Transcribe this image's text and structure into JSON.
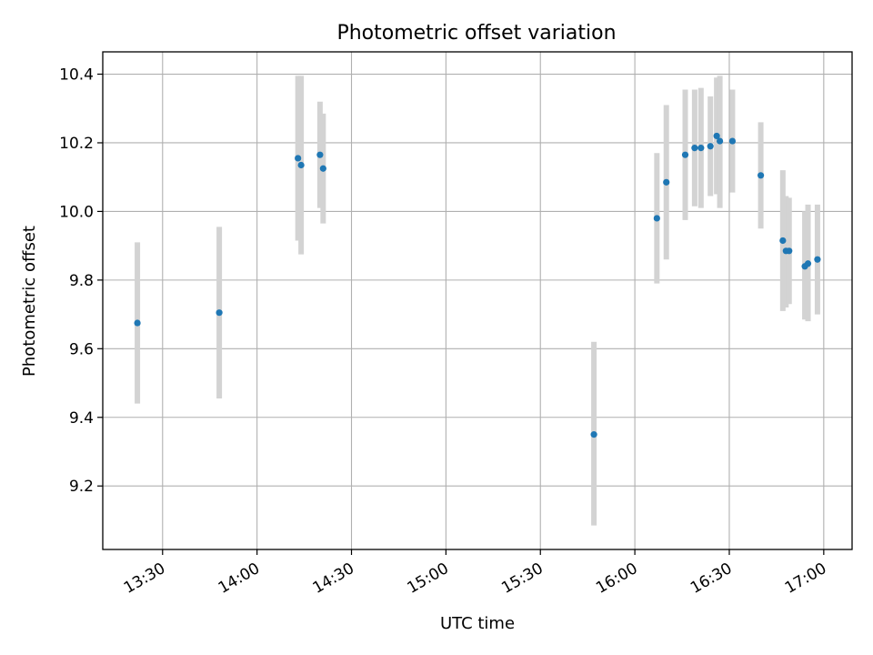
{
  "chart_data": {
    "type": "scatter",
    "title": "Photometric offset variation",
    "xlabel": "UTC time",
    "ylabel": "Photometric offset",
    "x_is_time": true,
    "xlim": [
      "13:11",
      "17:09"
    ],
    "ylim": [
      9.015,
      10.465
    ],
    "x_ticks": [
      "13:30",
      "14:00",
      "14:30",
      "15:00",
      "15:30",
      "16:00",
      "16:30",
      "17:00"
    ],
    "y_ticks": [
      9.2,
      9.4,
      9.6,
      9.8,
      10.0,
      10.2,
      10.4
    ],
    "grid": true,
    "colors": {
      "point": "#1f77b4",
      "error_bar": "#d3d3d3"
    },
    "points": [
      {
        "x": "13:22",
        "y": 9.675,
        "ylo": 9.44,
        "yhi": 9.91
      },
      {
        "x": "13:48",
        "y": 9.705,
        "ylo": 9.455,
        "yhi": 9.955
      },
      {
        "x": "14:13",
        "y": 10.155,
        "ylo": 9.915,
        "yhi": 10.395
      },
      {
        "x": "14:14",
        "y": 10.135,
        "ylo": 9.875,
        "yhi": 10.395
      },
      {
        "x": "14:20",
        "y": 10.165,
        "ylo": 10.01,
        "yhi": 10.32
      },
      {
        "x": "14:21",
        "y": 10.125,
        "ylo": 9.965,
        "yhi": 10.285
      },
      {
        "x": "15:47",
        "y": 9.35,
        "ylo": 9.085,
        "yhi": 9.62
      },
      {
        "x": "16:07",
        "y": 9.98,
        "ylo": 9.79,
        "yhi": 10.17
      },
      {
        "x": "16:10",
        "y": 10.085,
        "ylo": 9.86,
        "yhi": 10.31
      },
      {
        "x": "16:16",
        "y": 10.165,
        "ylo": 9.975,
        "yhi": 10.355
      },
      {
        "x": "16:19",
        "y": 10.185,
        "ylo": 10.015,
        "yhi": 10.355
      },
      {
        "x": "16:21",
        "y": 10.185,
        "ylo": 10.01,
        "yhi": 10.36
      },
      {
        "x": "16:24",
        "y": 10.19,
        "ylo": 10.045,
        "yhi": 10.335
      },
      {
        "x": "16:26",
        "y": 10.22,
        "ylo": 10.05,
        "yhi": 10.39
      },
      {
        "x": "16:27",
        "y": 10.205,
        "ylo": 10.01,
        "yhi": 10.395
      },
      {
        "x": "16:31",
        "y": 10.205,
        "ylo": 10.055,
        "yhi": 10.355
      },
      {
        "x": "16:40",
        "y": 10.105,
        "ylo": 9.95,
        "yhi": 10.26
      },
      {
        "x": "16:47",
        "y": 9.915,
        "ylo": 9.71,
        "yhi": 10.12
      },
      {
        "x": "16:48",
        "y": 9.885,
        "ylo": 9.72,
        "yhi": 10.045
      },
      {
        "x": "16:49",
        "y": 9.885,
        "ylo": 9.73,
        "yhi": 10.04
      },
      {
        "x": "16:54",
        "y": 9.84,
        "ylo": 9.685,
        "yhi": 10.0
      },
      {
        "x": "16:55",
        "y": 9.848,
        "ylo": 9.68,
        "yhi": 10.02
      },
      {
        "x": "16:58",
        "y": 9.86,
        "ylo": 9.7,
        "yhi": 10.02
      }
    ]
  }
}
